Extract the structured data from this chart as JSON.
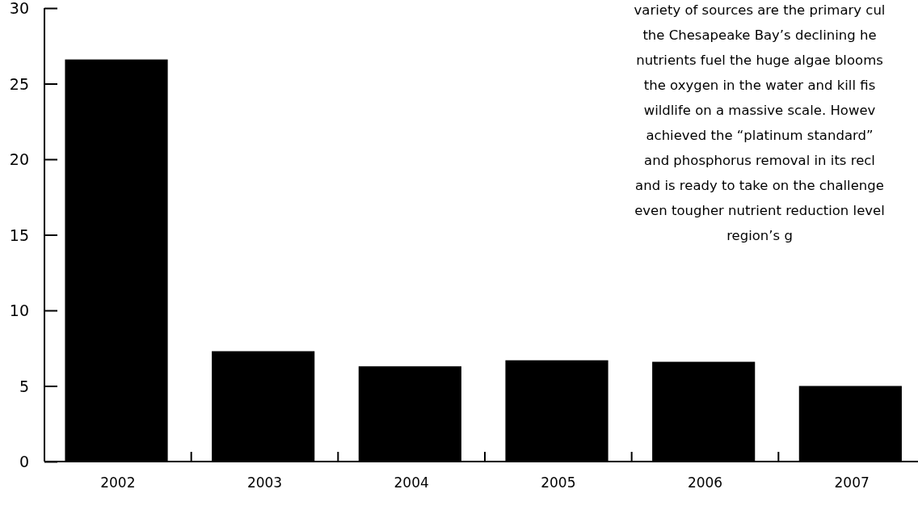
{
  "chart_data": {
    "type": "bar",
    "categories": [
      "2002",
      "2003",
      "2004",
      "2005",
      "2006",
      "2007"
    ],
    "values": [
      26.6,
      7.3,
      6.3,
      6.7,
      6.6,
      5.0
    ],
    "color": "#000000",
    "ylim": [
      0,
      30
    ],
    "yticks": [
      0,
      5,
      10,
      15,
      20,
      25,
      30
    ],
    "annotations": [
      "variety of sources are the primary cul\nthe Chesapeake Bay’s declining he\nnutrients fuel the huge algae blooms\nthe oxygen in the water and kill fis\nwildlife on a massive scale. Howev\nachieved the “platinum standard”\nand phosphorus removal in its recl\nand is ready to take on the challenge\neven tougher nutrient reduction level\nregion’s g"
    ]
  }
}
